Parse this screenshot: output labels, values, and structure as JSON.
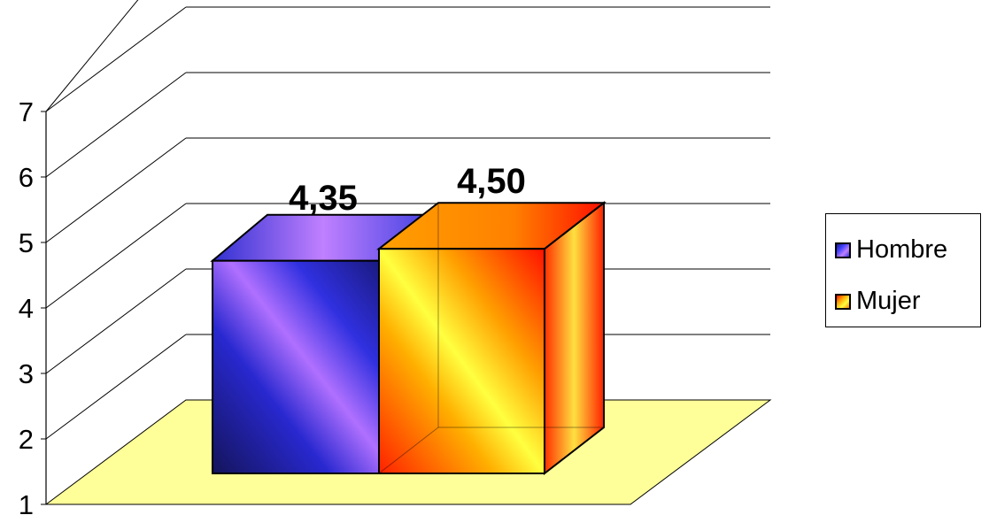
{
  "chart_data": {
    "type": "bar",
    "view": "3d-cube",
    "categories": [
      ""
    ],
    "series": [
      {
        "name": "Hombre",
        "values": [
          4.35
        ],
        "label": "4,35"
      },
      {
        "name": "Mujer",
        "values": [
          4.5
        ],
        "label": "4,50"
      }
    ],
    "ylim": [
      1,
      7
    ],
    "y_ticks": [
      "1",
      "2",
      "3",
      "4",
      "5",
      "6",
      "7"
    ],
    "grid": true,
    "legend": "right",
    "colors": {
      "floor": "#ffff99",
      "hombre": [
        "#1a1a8c",
        "#4040ff",
        "#c080ff"
      ],
      "mujer": [
        "#ff0000",
        "#ffa000",
        "#ffff40"
      ]
    }
  }
}
